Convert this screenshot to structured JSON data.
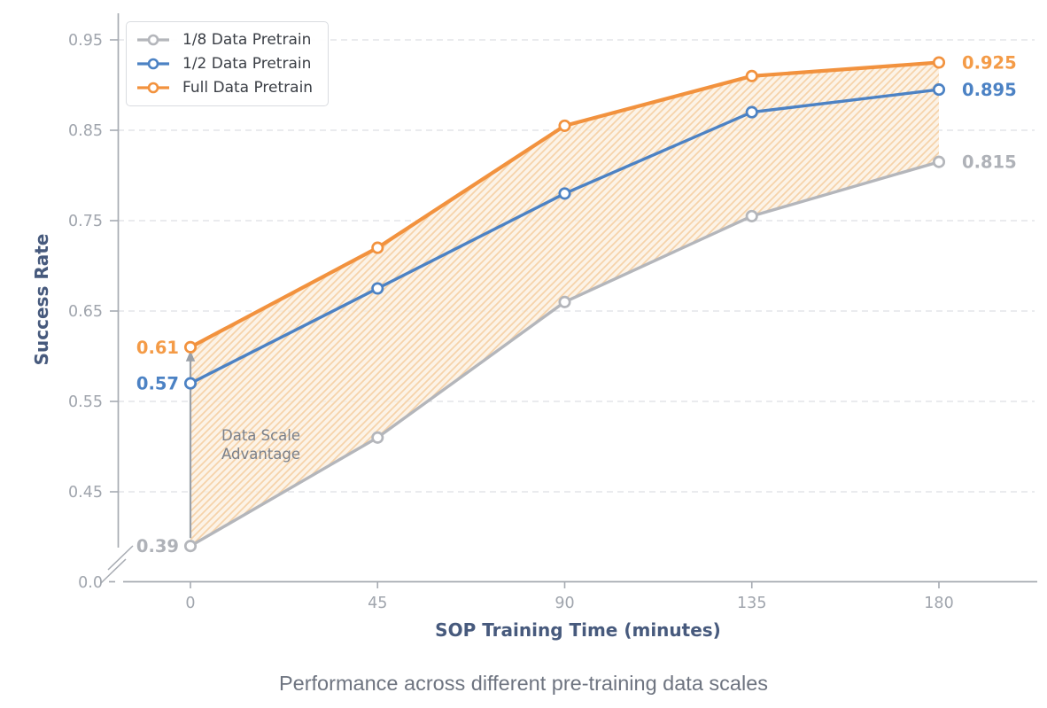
{
  "chart_data": {
    "type": "line",
    "caption": "Performance across different pre-training data scales",
    "xlabel": "SOP Training Time (minutes)",
    "ylabel": "Success Rate",
    "x": [
      0,
      45,
      90,
      135,
      180
    ],
    "xtick_labels": [
      "0",
      "45",
      "90",
      "135",
      "180"
    ],
    "yticks": [
      0.45,
      0.55,
      0.65,
      0.75,
      0.85,
      0.95
    ],
    "ytick_labels": [
      "0.45",
      "0.55",
      "0.65",
      "0.75",
      "0.85",
      "0.95"
    ],
    "axis_break_label": "0.0",
    "axis_break": true,
    "ylim_display": [
      0.38,
      0.97
    ],
    "grid": "horizontal-dashed",
    "legend_position": "upper-left",
    "series": [
      {
        "name": "1/8 Data Pretrain",
        "color": "#B4B6BB",
        "label_color": "#AFB2B8",
        "values": [
          0.39,
          0.51,
          0.66,
          0.755,
          0.815
        ],
        "first_label": "0.39",
        "last_label": "0.815"
      },
      {
        "name": "1/2 Data Pretrain",
        "color": "#4C82C4",
        "label_color": "#4C82C4",
        "values": [
          0.57,
          0.675,
          0.78,
          0.87,
          0.895
        ],
        "first_label": "0.57",
        "last_label": "0.895"
      },
      {
        "name": "Full Data Pretrain",
        "color": "#F2923E",
        "label_color": "#F49B47",
        "values": [
          0.61,
          0.72,
          0.855,
          0.91,
          0.925
        ],
        "first_label": "0.61",
        "last_label": "0.925"
      }
    ],
    "band": {
      "between": [
        "Full Data Pretrain",
        "1/8 Data Pretrain"
      ],
      "fill": "#FBEFDF",
      "hatch_color": "#F5D0A4",
      "hatch": "/"
    },
    "annotation": {
      "text": "Data Scale\nAdvantage",
      "color": "#7B808A"
    },
    "arrow": {
      "at_x": 0,
      "from": 0.39,
      "to": 0.61,
      "color": "#9AA0A8"
    }
  },
  "colors": {
    "axis": "#A7ABB2",
    "grid": "#DDDFE3",
    "tick_label": "#A0A5AD",
    "axis_title": "#475A7D",
    "caption": "#6E7480",
    "legend_border": "#D9DCE0",
    "legend_text": "#3A3E45",
    "background": "#FFFFFF"
  }
}
